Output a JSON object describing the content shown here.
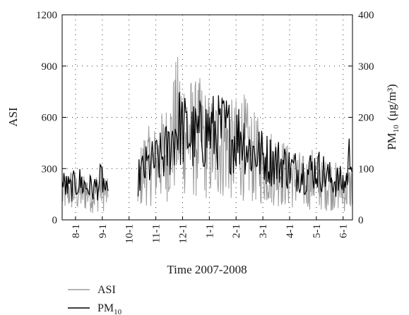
{
  "chart_data": {
    "type": "line",
    "xlabel": "Time 2007-2008",
    "ylabel_left": "ASI",
    "ylabel_right": "PM",
    "ylabel_right_sub": "10",
    "ylabel_right_unit": "(μg/m³)",
    "ylim_left": [
      0,
      1200
    ],
    "ylim_right": [
      0,
      400
    ],
    "yticks_left": [
      "0",
      "300",
      "600",
      "900",
      "1200"
    ],
    "yticks_right": [
      "0",
      "100",
      "200",
      "300",
      "400"
    ],
    "x_tick_labels": [
      "8-1",
      "9-1",
      "10-1",
      "11-1",
      "12-1",
      "1-1",
      "2-1",
      "3-1",
      "4-1",
      "5-1",
      "6-1"
    ],
    "x_range_months": [
      0.0,
      10.85
    ],
    "data_gap_months": [
      1.72,
      2.82
    ],
    "grid": "dotted",
    "legend": {
      "placement": "bottom-left"
    },
    "series": [
      {
        "name": "ASI",
        "axis": "left",
        "color": "#9a9a9a",
        "x": [
          0.0,
          0.3,
          0.6,
          0.9,
          1.2,
          1.5,
          1.72,
          2.82,
          3.1,
          3.4,
          3.7,
          4.0,
          4.3,
          4.6,
          4.9,
          5.2,
          5.5,
          5.8,
          6.1,
          6.4,
          6.7,
          7.0,
          7.3,
          7.6,
          7.9,
          8.2,
          8.5,
          8.8,
          9.1,
          9.4,
          9.7,
          10.0,
          10.3,
          10.6,
          10.85
        ],
        "y": [
          150,
          180,
          160,
          170,
          150,
          200,
          130,
          200,
          320,
          310,
          360,
          420,
          560,
          520,
          470,
          480,
          420,
          430,
          460,
          390,
          450,
          380,
          350,
          310,
          310,
          280,
          250,
          240,
          210,
          250,
          200,
          210,
          190,
          170,
          200
        ]
      },
      {
        "name": "PM",
        "name_sub": "10",
        "axis": "right",
        "color": "#000000",
        "x": [
          0.0,
          0.3,
          0.6,
          0.9,
          1.2,
          1.5,
          1.72,
          2.82,
          3.1,
          3.4,
          3.7,
          4.0,
          4.3,
          4.6,
          4.9,
          5.2,
          5.5,
          5.8,
          6.1,
          6.4,
          6.7,
          7.0,
          7.3,
          7.6,
          7.9,
          8.2,
          8.5,
          8.8,
          9.1,
          9.4,
          9.7,
          10.0,
          10.3,
          10.6,
          10.85
        ],
        "y": [
          70,
          60,
          75,
          65,
          60,
          80,
          40,
          80,
          100,
          110,
          120,
          140,
          185,
          170,
          160,
          165,
          175,
          170,
          175,
          155,
          170,
          135,
          130,
          120,
          115,
          110,
          100,
          95,
          90,
          100,
          95,
          80,
          75,
          70,
          170
        ]
      }
    ]
  }
}
